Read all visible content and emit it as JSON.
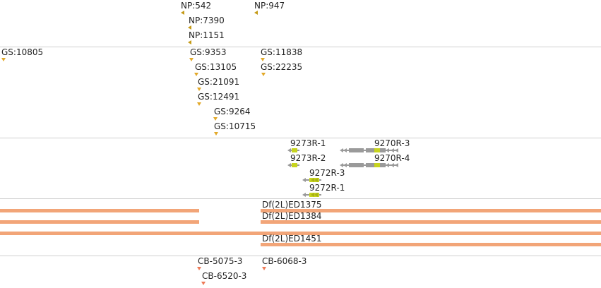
{
  "colors": {
    "np": "#c49a16",
    "gs": "#e2a92a",
    "gene": "#9a9a9a",
    "cds": "#c7d41f",
    "df": "#f2a578",
    "cb": "#ee7a57"
  },
  "np_track": [
    "NP:542",
    "NP:947",
    "NP:7390",
    "NP:1151"
  ],
  "gs_track": [
    "GS:10805",
    "GS:9353",
    "GS:11838",
    "GS:13105",
    "GS:22235",
    "GS:21091",
    "GS:12491",
    "GS:9264",
    "GS:10715"
  ],
  "gene_track": [
    "9273R-1",
    "9270R-3",
    "9273R-2",
    "9270R-4",
    "9272R-3",
    "9272R-1"
  ],
  "df_track": [
    "Df(2L)ED1375",
    "Df(2L)ED1384",
    "Df(2L)ED1451"
  ],
  "cb_track": [
    "CB-5075-3",
    "CB-6068-3",
    "CB-6520-3"
  ]
}
